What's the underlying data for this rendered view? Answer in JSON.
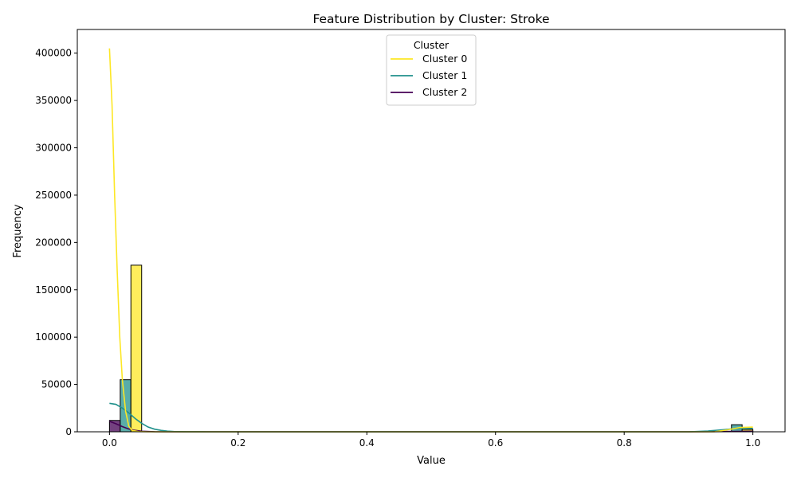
{
  "chart_data": {
    "type": "histogram",
    "title": "Feature Distribution by Cluster: Stroke",
    "xlabel": "Value",
    "ylabel": "Frequency",
    "xlim": [
      -0.05,
      1.05
    ],
    "ylim": [
      0,
      425000
    ],
    "x_ticks": [
      0.0,
      0.2,
      0.4,
      0.6,
      0.8,
      1.0
    ],
    "x_tick_labels": [
      "0.0",
      "0.2",
      "0.4",
      "0.6",
      "0.8",
      "1.0"
    ],
    "y_ticks": [
      0,
      50000,
      100000,
      150000,
      200000,
      250000,
      300000,
      350000,
      400000
    ],
    "y_tick_labels": [
      "0",
      "50000",
      "100000",
      "150000",
      "200000",
      "250000",
      "300000",
      "350000",
      "400000"
    ],
    "grid": false,
    "legend": {
      "title": "Cluster",
      "placement": "top-center",
      "entries": [
        "Cluster 0",
        "Cluster 1",
        "Cluster 2"
      ]
    },
    "series": [
      {
        "name": "Cluster 0",
        "color": "#fde725",
        "bars": [
          {
            "x0": 0.0333,
            "x1": 0.05,
            "value": 176000
          },
          {
            "x0": 0.9833,
            "x1": 1.0,
            "value": 2500
          }
        ],
        "kde": [
          [
            0.0,
            405000
          ],
          [
            0.004,
            345000
          ],
          [
            0.008,
            250000
          ],
          [
            0.012,
            170000
          ],
          [
            0.016,
            100000
          ],
          [
            0.02,
            55000
          ],
          [
            0.025,
            22000
          ],
          [
            0.03,
            6000
          ],
          [
            0.035,
            1500
          ],
          [
            0.045,
            200
          ],
          [
            0.06,
            0
          ],
          [
            0.94,
            0
          ],
          [
            0.96,
            2000
          ],
          [
            0.98,
            4500
          ],
          [
            1.0,
            5000
          ]
        ]
      },
      {
        "name": "Cluster 1",
        "color": "#21918c",
        "bars": [
          {
            "x0": 0.0167,
            "x1": 0.0333,
            "value": 55000
          },
          {
            "x0": 0.9667,
            "x1": 0.9833,
            "value": 7500
          }
        ],
        "kde": [
          [
            0.0,
            30000
          ],
          [
            0.01,
            29000
          ],
          [
            0.02,
            25000
          ],
          [
            0.03,
            20000
          ],
          [
            0.04,
            14000
          ],
          [
            0.05,
            9000
          ],
          [
            0.06,
            5000
          ],
          [
            0.07,
            2800
          ],
          [
            0.08,
            1500
          ],
          [
            0.09,
            700
          ],
          [
            0.1,
            300
          ],
          [
            0.12,
            80
          ],
          [
            0.15,
            0
          ],
          [
            0.9,
            0
          ],
          [
            0.93,
            800
          ],
          [
            0.95,
            2000
          ],
          [
            0.97,
            3200
          ],
          [
            1.0,
            3600
          ]
        ]
      },
      {
        "name": "Cluster 2",
        "color": "#440154",
        "bars": [
          {
            "x0": 0.0,
            "x1": 0.0167,
            "value": 12000
          },
          {
            "x0": 0.9833,
            "x1": 1.0,
            "value": 1000
          }
        ],
        "kde": [
          [
            0.0,
            11000
          ],
          [
            0.01,
            8500
          ],
          [
            0.02,
            5500
          ],
          [
            0.03,
            3000
          ],
          [
            0.04,
            1500
          ],
          [
            0.05,
            600
          ],
          [
            0.07,
            100
          ],
          [
            0.1,
            0
          ],
          [
            0.9,
            0
          ],
          [
            0.95,
            300
          ],
          [
            1.0,
            600
          ]
        ]
      }
    ]
  }
}
